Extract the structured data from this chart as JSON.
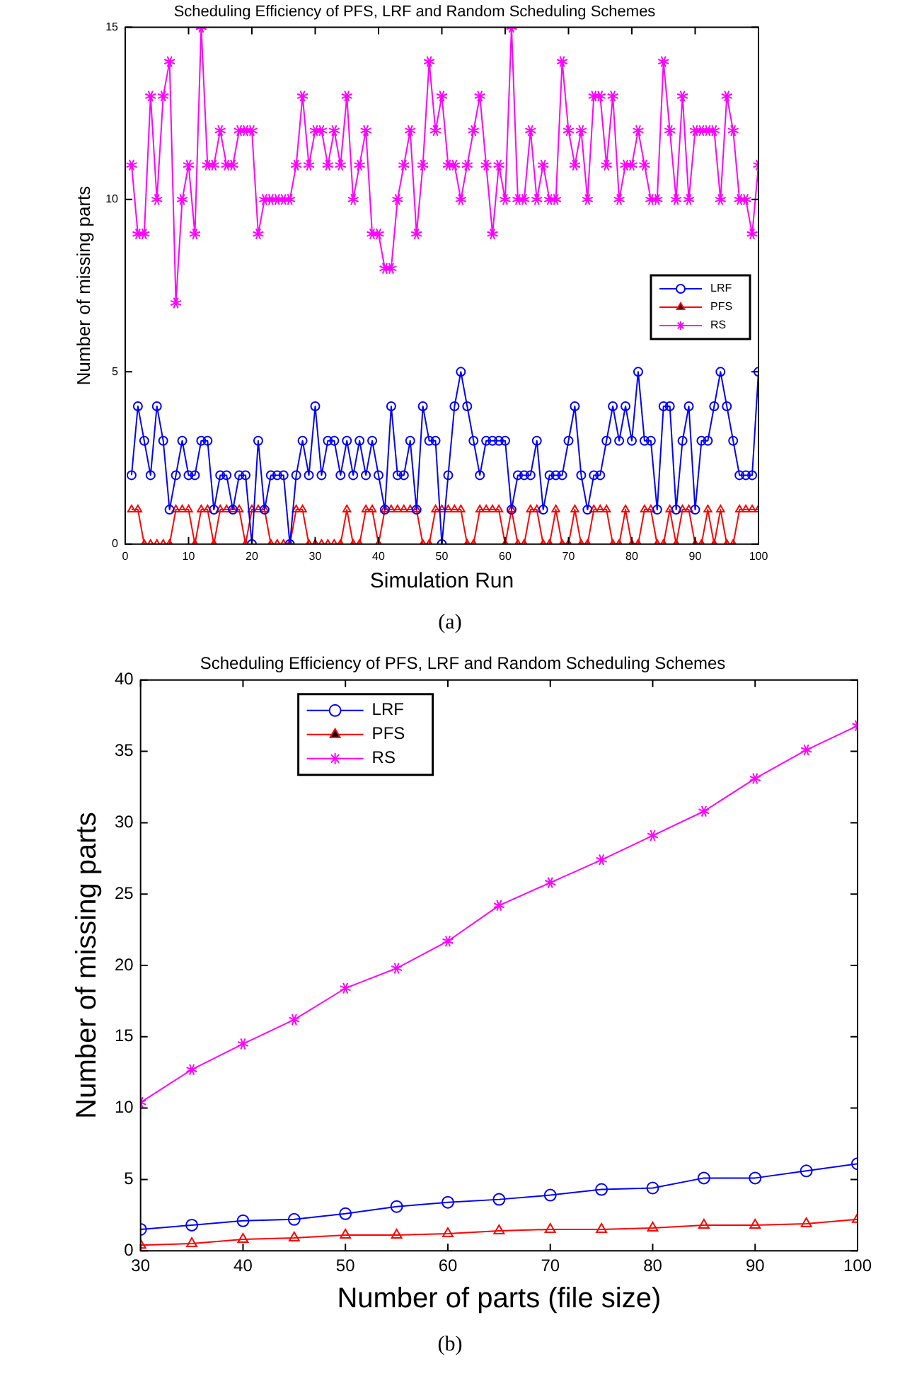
{
  "chart_data": [
    {
      "type": "line",
      "title": "Scheduling Efficiency of PFS, LRF and Random Scheduling Schemes",
      "xlabel": "Simulation Run",
      "ylabel": "Number of missing parts",
      "x": [
        1,
        2,
        3,
        4,
        5,
        6,
        7,
        8,
        9,
        10,
        11,
        12,
        13,
        14,
        15,
        16,
        17,
        18,
        19,
        20,
        21,
        22,
        23,
        24,
        25,
        26,
        27,
        28,
        29,
        30,
        31,
        32,
        33,
        34,
        35,
        36,
        37,
        38,
        39,
        40,
        41,
        42,
        43,
        44,
        45,
        46,
        47,
        48,
        49,
        50,
        51,
        52,
        53,
        54,
        55,
        56,
        57,
        58,
        59,
        60,
        61,
        62,
        63,
        64,
        65,
        66,
        67,
        68,
        69,
        70,
        71,
        72,
        73,
        74,
        75,
        76,
        77,
        78,
        79,
        80,
        81,
        82,
        83,
        84,
        85,
        86,
        87,
        88,
        89,
        90,
        91,
        92,
        93,
        94,
        95,
        96,
        97,
        98,
        99,
        100
      ],
      "series": [
        {
          "name": "LRF",
          "color": "#0000ff",
          "marker": "circle",
          "values": [
            2,
            4,
            3,
            2,
            4,
            3,
            1,
            2,
            3,
            2,
            2,
            3,
            3,
            1,
            2,
            2,
            1,
            2,
            2,
            0,
            3,
            1,
            2,
            2,
            2,
            0,
            2,
            3,
            2,
            4,
            2,
            3,
            3,
            2,
            3,
            2,
            3,
            2,
            3,
            2,
            1,
            4,
            2,
            2,
            3,
            1,
            4,
            3,
            3,
            0,
            2,
            4,
            5,
            4,
            3,
            2,
            3,
            3,
            3,
            3,
            1,
            2,
            2,
            2,
            3,
            1,
            2,
            2,
            2,
            3,
            4,
            2,
            1,
            2,
            2,
            3,
            4,
            3,
            4,
            3,
            5,
            3,
            3,
            1,
            4,
            4,
            1,
            3,
            4,
            1,
            3,
            3,
            4,
            5,
            4,
            3,
            2,
            2,
            2,
            5
          ]
        },
        {
          "name": "PFS",
          "color": "#ff0000",
          "marker": "triangle",
          "values": [
            1,
            1,
            0,
            0,
            0,
            0,
            0,
            1,
            1,
            1,
            0,
            1,
            1,
            0,
            1,
            1,
            1,
            1,
            0,
            1,
            1,
            1,
            0,
            0,
            0,
            0,
            1,
            1,
            0,
            0,
            0,
            0,
            0,
            0,
            1,
            0,
            0,
            1,
            1,
            0,
            1,
            1,
            1,
            1,
            1,
            1,
            0,
            0,
            1,
            1,
            1,
            1,
            1,
            0,
            0,
            1,
            1,
            1,
            1,
            0,
            1,
            0,
            0,
            1,
            1,
            0,
            0,
            1,
            0,
            0,
            1,
            0,
            0,
            1,
            1,
            1,
            0,
            0,
            1,
            0,
            0,
            1,
            1,
            0,
            0,
            1,
            0,
            1,
            1,
            0,
            0,
            1,
            0,
            1,
            0,
            0,
            1,
            1,
            1,
            1
          ]
        },
        {
          "name": "RS",
          "color": "#ff00ff",
          "marker": "cross",
          "values": [
            11,
            9,
            9,
            13,
            10,
            13,
            14,
            7,
            10,
            11,
            9,
            15,
            11,
            11,
            12,
            11,
            11,
            12,
            12,
            12,
            9,
            10,
            10,
            10,
            10,
            10,
            11,
            13,
            11,
            12,
            12,
            11,
            12,
            11,
            13,
            10,
            11,
            12,
            9,
            9,
            8,
            8,
            10,
            11,
            12,
            9,
            11,
            14,
            12,
            13,
            11,
            11,
            10,
            11,
            12,
            13,
            11,
            9,
            11,
            10,
            15,
            10,
            10,
            12,
            10,
            11,
            10,
            10,
            14,
            12,
            11,
            12,
            10,
            13,
            13,
            11,
            13,
            10,
            11,
            11,
            12,
            11,
            10,
            10,
            14,
            12,
            10,
            13,
            10,
            12,
            12,
            12,
            12,
            10,
            13,
            12,
            10,
            10,
            9,
            11
          ]
        }
      ],
      "xlim": [
        0,
        100
      ],
      "xticks": [
        0,
        10,
        20,
        30,
        40,
        50,
        60,
        70,
        80,
        90,
        100
      ],
      "ylim": [
        0,
        15
      ],
      "yticks": [
        0,
        5,
        10,
        15
      ],
      "legend": "right",
      "grid": false,
      "line_style": "solid",
      "annotations": [
        "(a)"
      ]
    },
    {
      "type": "line",
      "title": "Scheduling Efficiency of PFS, LRF and Random Scheduling Schemes",
      "xlabel": "Number of parts (file size)",
      "ylabel": "Number of missing parts",
      "x": [
        30,
        35,
        40,
        45,
        50,
        55,
        60,
        65,
        70,
        75,
        80,
        85,
        90,
        95,
        100
      ],
      "series": [
        {
          "name": "LRF",
          "color": "#0000ff",
          "marker": "circle",
          "values": [
            1.5,
            1.8,
            2.1,
            2.2,
            2.6,
            3.1,
            3.4,
            3.6,
            3.9,
            4.3,
            4.4,
            5.1,
            5.1,
            5.6,
            6.1
          ]
        },
        {
          "name": "PFS",
          "color": "#ff0000",
          "marker": "triangle",
          "values": [
            0.4,
            0.5,
            0.8,
            0.9,
            1.1,
            1.1,
            1.2,
            1.4,
            1.5,
            1.5,
            1.6,
            1.8,
            1.8,
            1.9,
            2.2
          ]
        },
        {
          "name": "RS",
          "color": "#ff00ff",
          "marker": "cross",
          "values": [
            10.4,
            12.7,
            14.5,
            16.2,
            18.4,
            19.8,
            21.7,
            24.2,
            25.8,
            27.4,
            29.1,
            30.8,
            33.1,
            35.1,
            36.8
          ]
        }
      ],
      "xlim": [
        30,
        100
      ],
      "xticks": [
        30,
        40,
        50,
        60,
        70,
        80,
        90,
        100
      ],
      "ylim": [
        0,
        40
      ],
      "yticks": [
        0,
        5,
        10,
        15,
        20,
        25,
        30,
        35,
        40
      ],
      "legend": "top left",
      "grid": false,
      "line_style": "solid",
      "annotations": [
        "(b)"
      ]
    }
  ]
}
